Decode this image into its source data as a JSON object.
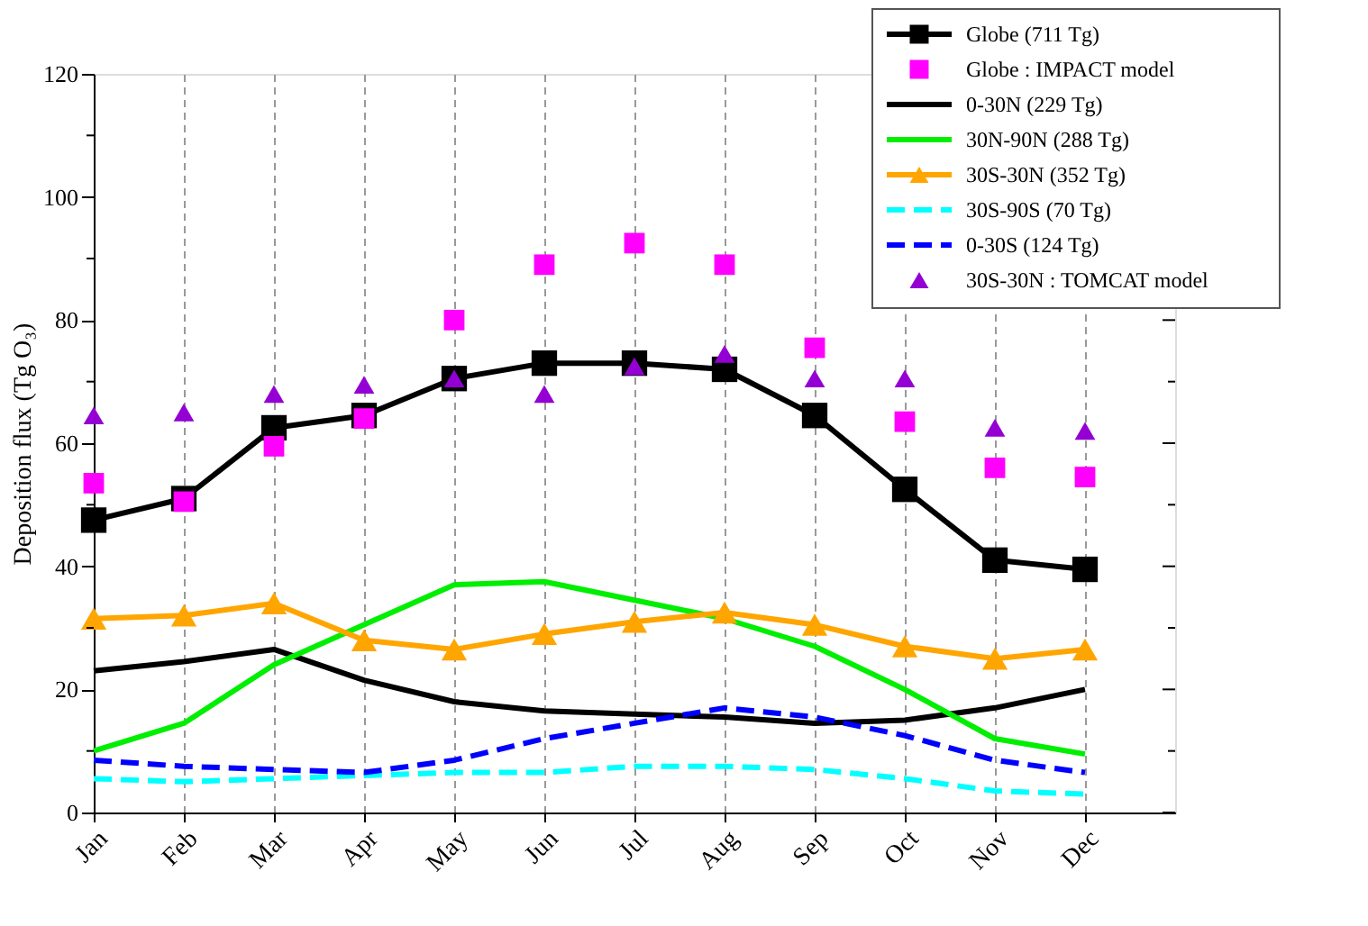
{
  "chart_data": {
    "type": "line",
    "ylabel": "Deposition flux (Tg O₃)",
    "categories": [
      "Jan",
      "Feb",
      "Mar",
      "Apr",
      "May",
      "Jun",
      "Jul",
      "Aug",
      "Sep",
      "Oct",
      "Nov",
      "Dec"
    ],
    "ylim": [
      0,
      120
    ],
    "yticks": [
      0,
      {
        "value": 10,
        "label": null
      },
      20,
      {
        "value": 30,
        "label": null
      },
      40,
      {
        "value": 50,
        "label": null
      },
      60,
      {
        "value": 70,
        "label": null
      },
      80,
      {
        "value": 90,
        "label": null
      },
      100,
      {
        "value": 110,
        "label": null
      },
      120
    ],
    "grid": "x",
    "legend": "top right",
    "series": [
      {
        "name": "Globe (711 Tg)",
        "color": "#000000",
        "marker": "square",
        "line_style": "solid",
        "values": [
          47.5,
          51,
          62.5,
          64.5,
          70.5,
          73,
          73,
          72,
          64.5,
          52.5,
          41,
          39.5
        ]
      },
      {
        "name": "Globe : IMPACT model",
        "type": "scatter",
        "color": "#ff00ff",
        "marker": "square",
        "values": [
          53.5,
          50.5,
          59.5,
          64,
          80,
          89,
          92.5,
          89,
          75.5,
          63.5,
          56,
          54.5
        ]
      },
      {
        "name": "0-30N (229 Tg)",
        "color": "#000000",
        "marker": "none",
        "line_style": "solid",
        "values": [
          23,
          24.5,
          26.5,
          21.5,
          18,
          16.5,
          16,
          15.5,
          14.5,
          15,
          17,
          20
        ]
      },
      {
        "name": "30N-90N (288 Tg)",
        "color": "#00ee00",
        "marker": "none",
        "line_style": "solid",
        "values": [
          10,
          14.5,
          24,
          30.5,
          37,
          37.5,
          34.5,
          31.5,
          27,
          20,
          12,
          9.5
        ]
      },
      {
        "name": "30S-30N (352 Tg)",
        "color": "#ffa500",
        "marker": "triangle",
        "line_style": "solid",
        "values": [
          31.5,
          32,
          34,
          28,
          26.5,
          29,
          31,
          32.5,
          30.5,
          27,
          25,
          26.5
        ]
      },
      {
        "name": "30S-90S (70 Tg)",
        "color": "#00ffff",
        "marker": "none",
        "line_style": "dashed",
        "values": [
          5.5,
          5,
          5.5,
          6,
          6.5,
          6.5,
          7.5,
          7.5,
          7,
          5.5,
          3.5,
          3
        ]
      },
      {
        "name": "0-30S (124 Tg)",
        "color": "#0000ff",
        "marker": "none",
        "line_style": "dashed",
        "values": [
          8.5,
          7.5,
          7,
          6.5,
          8.5,
          12,
          14.5,
          17,
          15.5,
          12.5,
          8.5,
          6.5
        ]
      },
      {
        "name": "30S-30N : TOMCAT model",
        "type": "scatter",
        "color": "#9400d3",
        "marker": "triangle",
        "values": [
          64.5,
          65,
          68,
          69.5,
          70.5,
          68,
          72.5,
          74.5,
          70.5,
          70.5,
          62.5,
          62
        ]
      }
    ]
  }
}
